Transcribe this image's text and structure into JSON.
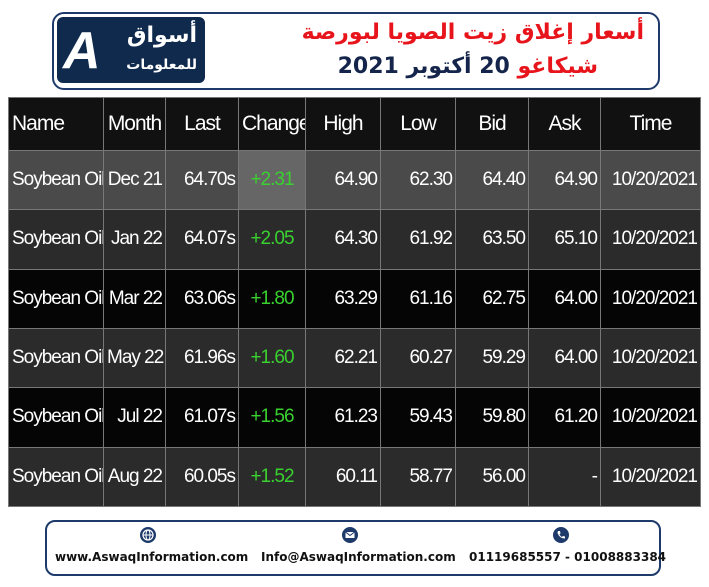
{
  "header": {
    "logo_mark": "A",
    "logo_name": "أسواق",
    "logo_sub": "للمعلومات",
    "title_line1": "أسعار إغلاق زيت الصويا لبورصة",
    "title_line2_red": "شيكاغو",
    "title_line2_date": "20 أكتوبر 2021"
  },
  "table": {
    "columns": [
      "Name",
      "Month",
      "Last",
      "Change",
      "High",
      "Low",
      "Bid",
      "Ask",
      "Time"
    ],
    "rows": [
      [
        "Soybean Oil",
        "Dec 21",
        "64.70s",
        "+2.31",
        "64.90",
        "62.30",
        "64.40",
        "64.90",
        "10/20/2021"
      ],
      [
        "Soybean Oil",
        "Jan 22",
        "64.07s",
        "+2.05",
        "64.30",
        "61.92",
        "63.50",
        "65.10",
        "10/20/2021"
      ],
      [
        "Soybean Oil",
        "Mar 22",
        "63.06s",
        "+1.80",
        "63.29",
        "61.16",
        "62.75",
        "64.00",
        "10/20/2021"
      ],
      [
        "Soybean Oil",
        "May 22",
        "61.96s",
        "+1.60",
        "62.21",
        "60.27",
        "59.29",
        "64.00",
        "10/20/2021"
      ],
      [
        "Soybean Oil",
        "Jul 22",
        "61.07s",
        "+1.56",
        "61.23",
        "59.43",
        "59.80",
        "61.20",
        "10/20/2021"
      ],
      [
        "Soybean Oil",
        "Aug 22",
        "60.05s",
        "+1.52",
        "60.11",
        "58.77",
        "56.00",
        "-",
        "10/20/2021"
      ]
    ]
  },
  "footer": {
    "website": "www.AswaqInformation.com",
    "email": "Info@AswaqInformation.com",
    "phones": "01119685557 - 01008883384"
  }
}
